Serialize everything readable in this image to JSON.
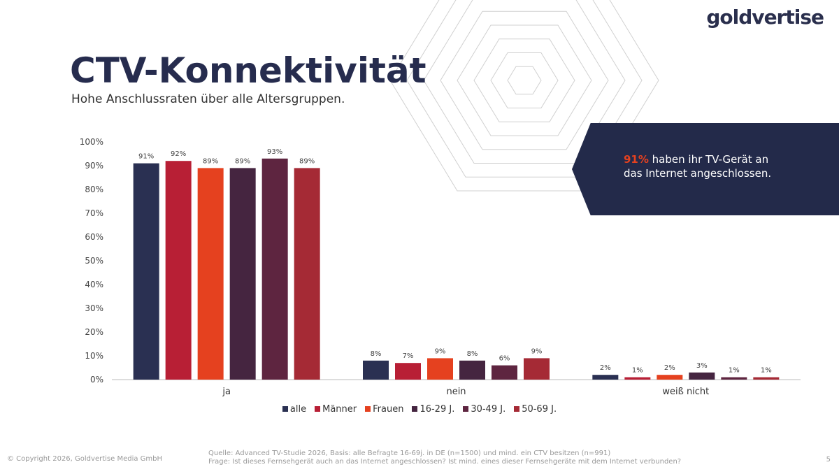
{
  "logo": "goldvertise",
  "title": "CTV-Konnektivität",
  "subtitle": "Hohe Anschlussraten über alle Altersgruppen.",
  "callout": {
    "highlight": "91%",
    "text1": " haben ihr TV-Gerät an",
    "text2": "das Internet angeschlossen.",
    "highlight_color": "#e5411f"
  },
  "chart_data": {
    "type": "bar",
    "categories": [
      "ja",
      "nein",
      "weiß nicht"
    ],
    "yticks": [
      "0%",
      "10%",
      "20%",
      "30%",
      "40%",
      "50%",
      "60%",
      "70%",
      "80%",
      "90%",
      "100%"
    ],
    "ylim": [
      0,
      100
    ],
    "legend_position": "bottom",
    "series": [
      {
        "name": "alle",
        "color": "#2a3052",
        "values": [
          91,
          8,
          2
        ]
      },
      {
        "name": "Männer",
        "color": "#b81f35",
        "values": [
          92,
          7,
          1
        ]
      },
      {
        "name": "Frauen",
        "color": "#e5411f",
        "values": [
          89,
          9,
          2
        ]
      },
      {
        "name": "16-29 J.",
        "color": "#452540",
        "values": [
          89,
          8,
          3
        ]
      },
      {
        "name": "30-49 J.",
        "color": "#5e2540",
        "values": [
          93,
          6,
          1
        ]
      },
      {
        "name": "50-69 J.",
        "color": "#a52a35",
        "values": [
          89,
          9,
          1
        ]
      }
    ]
  },
  "footer": {
    "copyright": "© Copyright 2026, Goldvertise Media GmbH",
    "source": "Quelle: Advanced TV-Studie 2026, Basis: alle Befragte 16-69j. in DE (n=1500) und mind. ein CTV besitzen (n=991)",
    "question": "Frage: Ist dieses Fernsehgerät auch an das Internet angeschlossen? Ist mind. eines dieser Fernsehgeräte mit dem Internet verbunden?",
    "page": "5"
  }
}
